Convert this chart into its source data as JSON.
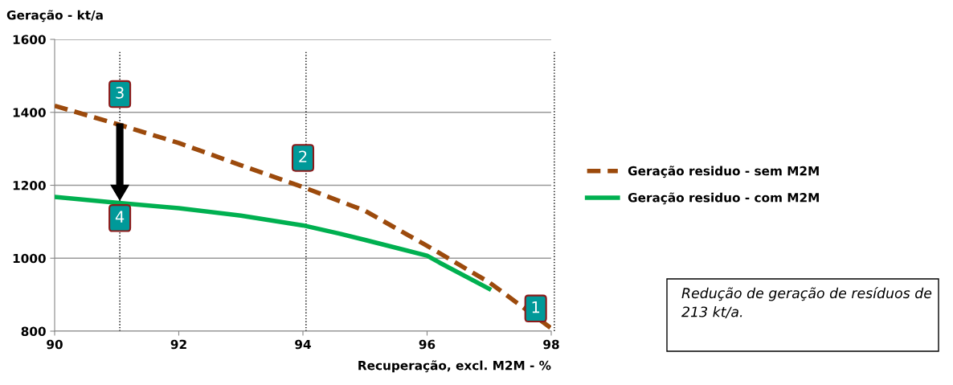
{
  "chart_data": {
    "type": "line",
    "xlabel": "Recuperação, excl. M2M - %",
    "ylabel": "Geração - kt/a",
    "xlim": [
      90,
      98
    ],
    "xticks": [
      90,
      92,
      94,
      96,
      98
    ],
    "ylim": [
      800,
      1600
    ],
    "yticks": [
      800,
      1000,
      1200,
      1400,
      1600
    ],
    "grid": "y",
    "legend": "right",
    "marker": "none",
    "series": [
      {
        "name": "Geração residuo - sem M2M",
        "color": "#9c4a0c",
        "line_style": "dashed",
        "x": [
          90,
          91,
          92,
          93,
          94,
          95,
          96,
          97,
          98
        ],
        "values": [
          1418,
          1368,
          1316,
          1255,
          1195,
          1130,
          1034,
          934,
          808
        ]
      },
      {
        "name": "Geração residuo - com M2M",
        "color": "#00b050",
        "line_style": "solid",
        "x": [
          90,
          91,
          92,
          93,
          94,
          94.6,
          95,
          96,
          96.2,
          97
        ],
        "values": [
          1168,
          1152,
          1137,
          1117,
          1090,
          1067,
          1050,
          1007,
          988,
          916
        ]
      }
    ],
    "ref_lines": [
      {
        "axis": "x",
        "value": 91.05,
        "color": "#000000",
        "line_style": "dotted"
      },
      {
        "axis": "x",
        "value": 94.05,
        "color": "#000000",
        "line_style": "dotted"
      },
      {
        "axis": "x",
        "value": 98.05,
        "color": "#000000",
        "line_style": "dotted"
      }
    ],
    "annotations": [
      {
        "text": "3",
        "x": 91.05,
        "y": 1450
      },
      {
        "text": "2",
        "x": 94.0,
        "y": 1275
      },
      {
        "text": "4",
        "x": 91.05,
        "y": 1110
      },
      {
        "text": "1",
        "x": 97.75,
        "y": 862
      },
      "Redução de geração de resíduos de 213 kt/a."
    ]
  }
}
